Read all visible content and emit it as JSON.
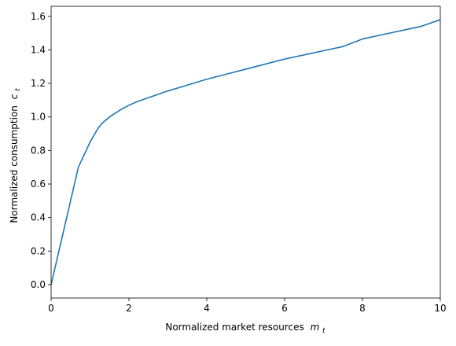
{
  "chart_data": {
    "type": "line",
    "title": "",
    "xlabel": "Normalized market resources",
    "xlabel_math": "m",
    "xlabel_sub": "t",
    "ylabel": "Normalized consumption",
    "ylabel_math": "c",
    "ylabel_sub": "t",
    "xlim": [
      0,
      10
    ],
    "ylim": [
      -0.08,
      1.66
    ],
    "grid": false,
    "legend": "none",
    "xticks": [
      0,
      2,
      4,
      6,
      8,
      10
    ],
    "xtick_labels": [
      "0",
      "2",
      "4",
      "6",
      "8",
      "10"
    ],
    "yticks": [
      0.0,
      0.2,
      0.4,
      0.6,
      0.8,
      1.0,
      1.2,
      1.4,
      1.6
    ],
    "ytick_labels": [
      "0.0",
      "0.2",
      "0.4",
      "0.6",
      "0.8",
      "1.0",
      "1.2",
      "1.4",
      "1.6"
    ],
    "series": [
      {
        "color": "#1f77b4",
        "x": [
          0,
          0.7,
          0.8,
          0.9,
          1.0,
          1.1,
          1.2,
          1.3,
          1.4,
          1.5,
          1.6,
          1.7,
          1.8,
          2.0,
          2.2,
          2.5,
          3.0,
          3.5,
          4.0,
          4.5,
          5.0,
          5.5,
          6.0,
          6.5,
          7.0,
          7.5,
          8.0,
          8.5,
          9.0,
          9.5,
          10.0
        ],
        "y": [
          0.0,
          0.7,
          0.75,
          0.8,
          0.85,
          0.89,
          0.93,
          0.96,
          0.98,
          1.0,
          1.015,
          1.03,
          1.045,
          1.07,
          1.09,
          1.115,
          1.155,
          1.19,
          1.225,
          1.255,
          1.285,
          1.315,
          1.345,
          1.37,
          1.395,
          1.42,
          1.465,
          1.49,
          1.515,
          1.54,
          1.58
        ]
      }
    ]
  }
}
